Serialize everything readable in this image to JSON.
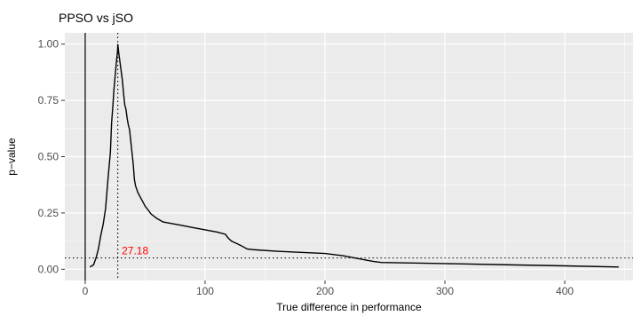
{
  "chart_data": {
    "type": "line",
    "title": "PPSO vs jSO",
    "xlabel": "True difference in performance",
    "ylabel": "p−value",
    "xlim": [
      -17,
      457
    ],
    "ylim": [
      -0.05,
      1.05
    ],
    "x_ticks": [
      0,
      100,
      200,
      300,
      400
    ],
    "y_ticks": [
      0.0,
      0.25,
      0.5,
      0.75,
      1.0
    ],
    "x_tick_labels": [
      "0",
      "100",
      "200",
      "300",
      "400"
    ],
    "y_tick_labels": [
      "0.00",
      "0.25",
      "0.50",
      "0.75",
      "1.00"
    ],
    "grid": true,
    "colors": {
      "panel": "#ebebeb",
      "grid": "#ffffff",
      "line": "#000000",
      "annotation": "#ff0000"
    },
    "series": [
      {
        "x": [
          4,
          7,
          9,
          11,
          13,
          15,
          17,
          19,
          21,
          22,
          23,
          24,
          25,
          26,
          27,
          27.18,
          28,
          29,
          30,
          31,
          32,
          33,
          34,
          35,
          36,
          37,
          38,
          39,
          40,
          41,
          42,
          44,
          46,
          50,
          55,
          60,
          65,
          70,
          80,
          90,
          100,
          110,
          117,
          119,
          120,
          122,
          126,
          130,
          135,
          140,
          160,
          180,
          200,
          215,
          230,
          240,
          247,
          300,
          350,
          400,
          445
        ],
        "values": [
          0.01,
          0.02,
          0.05,
          0.09,
          0.15,
          0.2,
          0.27,
          0.4,
          0.52,
          0.65,
          0.72,
          0.8,
          0.86,
          0.92,
          0.97,
          1.0,
          0.96,
          0.92,
          0.88,
          0.84,
          0.78,
          0.73,
          0.71,
          0.67,
          0.64,
          0.62,
          0.57,
          0.52,
          0.47,
          0.4,
          0.37,
          0.34,
          0.32,
          0.28,
          0.245,
          0.225,
          0.21,
          0.205,
          0.195,
          0.185,
          0.175,
          0.165,
          0.155,
          0.14,
          0.135,
          0.125,
          0.115,
          0.105,
          0.09,
          0.087,
          0.08,
          0.075,
          0.07,
          0.06,
          0.045,
          0.035,
          0.03,
          0.025,
          0.02,
          0.015,
          0.01
        ]
      }
    ],
    "reference_lines": {
      "vertical_solid_x": 0,
      "vertical_dotted_x": 27.18,
      "horizontal_dotted_y": 0.05
    },
    "annotation": {
      "text": "27.18",
      "x": 29,
      "y": 0.05
    }
  }
}
